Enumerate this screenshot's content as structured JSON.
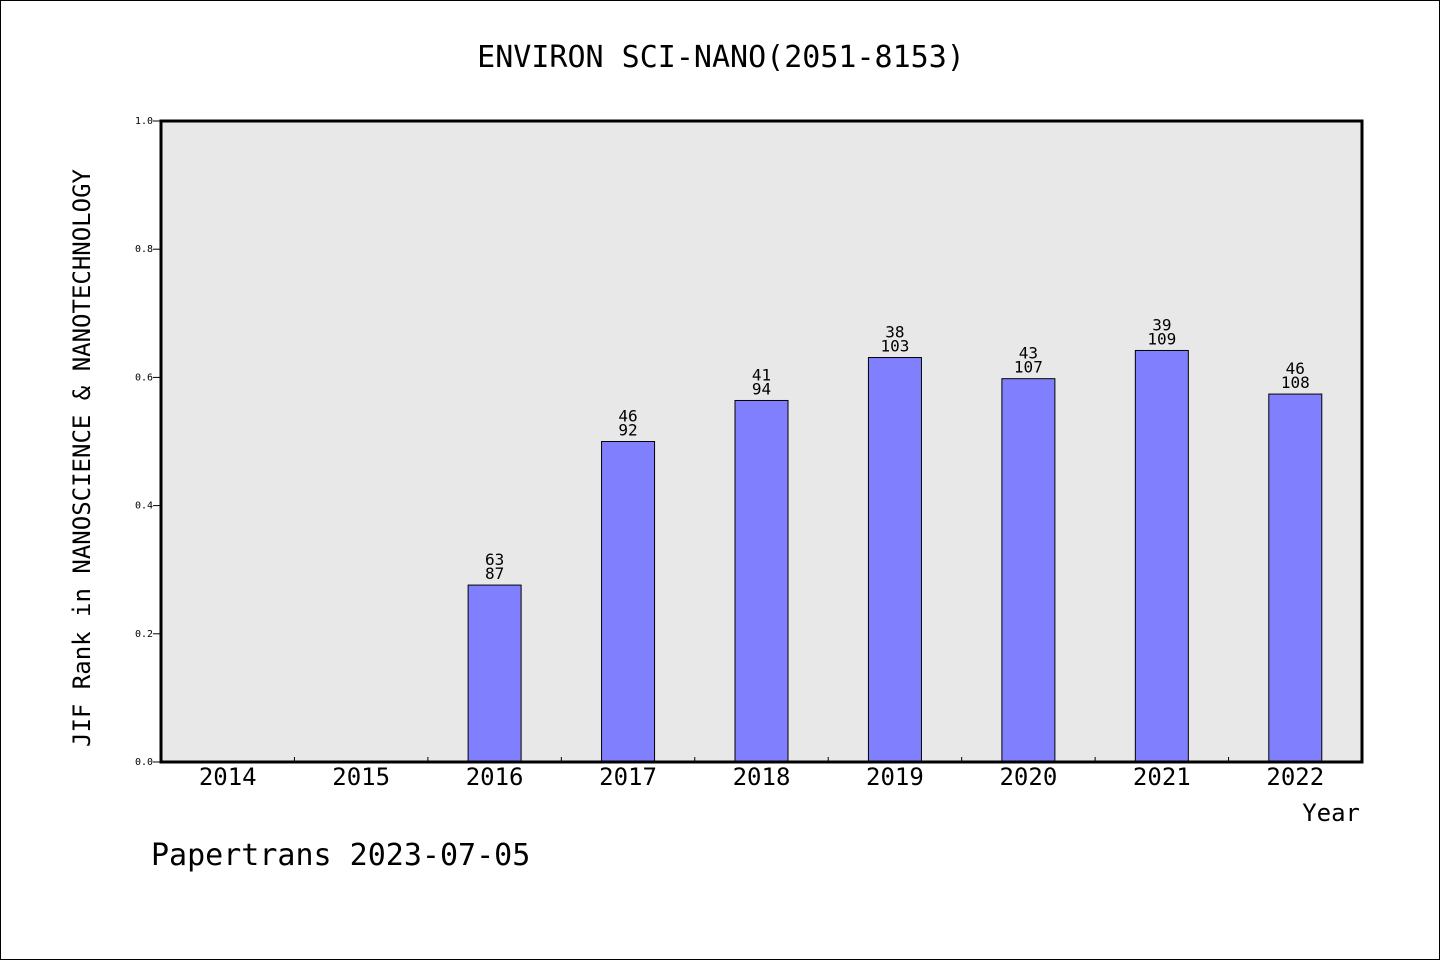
{
  "chart_data": {
    "type": "bar",
    "title": "ENVIRON SCI-NANO(2051-8153)",
    "xlabel": "Year",
    "ylabel": "JIF Rank in NANOSCIENCE & NANOTECHNOLOGY",
    "ylim": [
      0,
      1.0
    ],
    "yticks": [
      "0.0",
      "0.2",
      "0.4",
      "0.6",
      "0.8",
      "1.0"
    ],
    "grid": false,
    "categories": [
      "2014",
      "2015",
      "2016",
      "2017",
      "2018",
      "2019",
      "2020",
      "2021",
      "2022"
    ],
    "values": [
      null,
      null,
      0.276,
      0.5,
      0.564,
      0.631,
      0.598,
      0.642,
      0.574
    ],
    "rank": [
      null,
      null,
      "63",
      "46",
      "41",
      "38",
      "43",
      "39",
      "46"
    ],
    "total": [
      null,
      null,
      "87",
      "92",
      "94",
      "103",
      "107",
      "109",
      "108"
    ],
    "colors": {
      "bar": "#8080ff",
      "plot_bg": "#e8e8e8"
    }
  },
  "footer": "Papertrans 2023-07-05"
}
